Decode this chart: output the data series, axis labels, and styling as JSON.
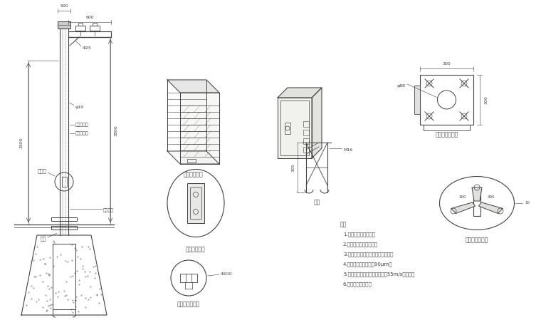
{
  "bg_color": "#f8f8f5",
  "line_color": "#404040",
  "title_texts": {
    "waterproof_box": "防水箱放大图",
    "base_flange_front": "底座法兰正视图",
    "repair_hole": "维修孔放大图",
    "ground_cage": "地笼",
    "base_flange_detail": "底座法兰放大图",
    "machine_flange": "桩机法兰放大图",
    "notes_title": "说明"
  },
  "notes": [
    "1.主干为国标镀锌管。",
    "2.上下法兰加强筋连接。",
    "3.喷涂后不再进行任何加工和焊接。",
    "4.钢管镀锌锌层厚护为90μm。",
    "5.立杆、横臂和其它零件应能抗55m/s的风速。",
    "6.接管、避雷针可拆"
  ]
}
